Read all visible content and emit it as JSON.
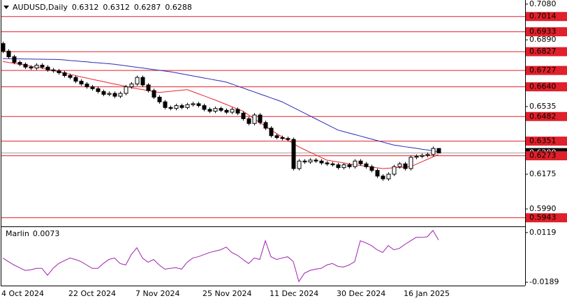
{
  "chart_data": [
    {
      "type": "candlestick",
      "title": "AUDUSD,Daily",
      "categories": [
        "4 Oct 2024",
        null,
        null,
        null,
        null,
        null,
        null,
        null,
        null,
        null,
        null,
        null,
        "22 Oct 2024",
        null,
        null,
        null,
        null,
        null,
        null,
        null,
        null,
        null,
        null,
        null,
        "7 Nov 2024",
        null,
        null,
        null,
        null,
        null,
        null,
        null,
        null,
        null,
        null,
        null,
        "25 Nov 2024",
        null,
        null,
        null,
        null,
        null,
        null,
        null,
        null,
        null,
        null,
        null,
        "11 Dec 2024",
        null,
        null,
        null,
        null,
        null,
        null,
        null,
        null,
        null,
        null,
        null,
        "30 Dec 2024",
        null,
        null,
        null,
        null,
        null,
        null,
        null,
        null,
        null,
        null,
        null,
        "16 Jan 2025",
        null,
        null,
        null,
        null,
        null,
        null
      ],
      "open": [
        0.687,
        0.683,
        0.68,
        0.677,
        0.676,
        0.6745,
        0.674,
        0.6755,
        0.6745,
        0.673,
        0.6725,
        0.6715,
        0.67,
        0.669,
        0.667,
        0.6655,
        0.664,
        0.663,
        0.6615,
        0.66,
        0.6605,
        0.659,
        0.6605,
        0.664,
        0.6655,
        0.669,
        0.665,
        0.662,
        0.6585,
        0.656,
        0.653,
        0.6525,
        0.654,
        0.653,
        0.6545,
        0.655,
        0.654,
        0.652,
        0.651,
        0.6525,
        0.6515,
        0.6505,
        0.652,
        0.65,
        0.647,
        0.6445,
        0.649,
        0.645,
        0.642,
        0.638,
        0.637,
        0.6365,
        0.636,
        0.6205,
        0.6245,
        0.624,
        0.625,
        0.6245,
        0.6235,
        0.623,
        0.6225,
        0.621,
        0.6225,
        0.6215,
        0.6245,
        0.623,
        0.6215,
        0.6195,
        0.6165,
        0.615,
        0.6175,
        0.6215,
        0.623,
        0.6205,
        0.6265,
        0.627,
        0.6275,
        0.628,
        0.6312
      ],
      "high": [
        0.688,
        0.684,
        0.681,
        0.678,
        0.677,
        0.6755,
        0.6765,
        0.6765,
        0.6755,
        0.674,
        0.6735,
        0.6725,
        0.671,
        0.67,
        0.668,
        0.6665,
        0.665,
        0.664,
        0.6625,
        0.6615,
        0.6615,
        0.6615,
        0.665,
        0.6665,
        0.67,
        0.67,
        0.666,
        0.663,
        0.6595,
        0.657,
        0.654,
        0.655,
        0.655,
        0.6555,
        0.656,
        0.656,
        0.655,
        0.653,
        0.6535,
        0.6535,
        0.6525,
        0.653,
        0.653,
        0.651,
        0.648,
        0.65,
        0.65,
        0.646,
        0.643,
        0.639,
        0.638,
        0.6375,
        0.637,
        0.6255,
        0.6255,
        0.626,
        0.626,
        0.6255,
        0.6245,
        0.624,
        0.6235,
        0.6235,
        0.6235,
        0.6255,
        0.6255,
        0.624,
        0.6225,
        0.6205,
        0.6175,
        0.6185,
        0.6225,
        0.624,
        0.624,
        0.6275,
        0.628,
        0.6285,
        0.629,
        0.6322,
        0.6312
      ],
      "low": [
        0.682,
        0.679,
        0.676,
        0.675,
        0.6735,
        0.673,
        0.673,
        0.6735,
        0.672,
        0.6715,
        0.6705,
        0.669,
        0.668,
        0.666,
        0.6645,
        0.663,
        0.662,
        0.6605,
        0.659,
        0.659,
        0.658,
        0.658,
        0.6595,
        0.663,
        0.6645,
        0.664,
        0.661,
        0.6575,
        0.655,
        0.652,
        0.6515,
        0.6515,
        0.652,
        0.652,
        0.6535,
        0.653,
        0.651,
        0.65,
        0.65,
        0.6505,
        0.6495,
        0.6495,
        0.649,
        0.646,
        0.6435,
        0.6435,
        0.644,
        0.641,
        0.637,
        0.636,
        0.6355,
        0.635,
        0.6195,
        0.6195,
        0.623,
        0.623,
        0.6235,
        0.6225,
        0.622,
        0.6215,
        0.62,
        0.62,
        0.6205,
        0.6205,
        0.622,
        0.6205,
        0.6185,
        0.6155,
        0.614,
        0.614,
        0.6165,
        0.6205,
        0.6195,
        0.6195,
        0.6255,
        0.626,
        0.6265,
        0.627,
        0.6287
      ],
      "close": [
        0.683,
        0.68,
        0.677,
        0.676,
        0.6745,
        0.674,
        0.6755,
        0.6745,
        0.673,
        0.6725,
        0.6715,
        0.67,
        0.669,
        0.667,
        0.6655,
        0.664,
        0.663,
        0.6615,
        0.66,
        0.6605,
        0.659,
        0.6605,
        0.664,
        0.6655,
        0.669,
        0.665,
        0.662,
        0.6585,
        0.656,
        0.653,
        0.6525,
        0.654,
        0.653,
        0.6545,
        0.655,
        0.654,
        0.652,
        0.651,
        0.6525,
        0.6515,
        0.6505,
        0.652,
        0.65,
        0.647,
        0.6445,
        0.649,
        0.645,
        0.642,
        0.638,
        0.637,
        0.6365,
        0.636,
        0.6205,
        0.6245,
        0.624,
        0.625,
        0.6245,
        0.6235,
        0.623,
        0.6225,
        0.621,
        0.6225,
        0.6215,
        0.6245,
        0.623,
        0.6215,
        0.6195,
        0.6165,
        0.615,
        0.6175,
        0.6215,
        0.623,
        0.6205,
        0.6265,
        0.627,
        0.6275,
        0.628,
        0.6312,
        0.6288
      ],
      "up_color": "#ffffff",
      "down_color": "#000000",
      "wick_color": "#000000",
      "series": [
        {
          "color": "#e8262a",
          "values": [
            0.6775,
            0.677,
            0.6765,
            0.676,
            0.6755,
            0.675,
            0.6745,
            0.674,
            0.6733,
            0.6727,
            0.672,
            0.6713,
            0.6707,
            0.67,
            0.6693,
            0.6687,
            0.668,
            0.6674,
            0.6668,
            0.6661,
            0.6655,
            0.6649,
            0.6643,
            0.6636,
            0.663,
            0.6625,
            0.662,
            0.6615,
            0.661,
            0.6613,
            0.6616,
            0.6619,
            0.6622,
            0.6625,
            0.6614,
            0.6603,
            0.6592,
            0.6581,
            0.657,
            0.6558,
            0.6546,
            0.6534,
            0.6522,
            0.651,
            0.649,
            0.647,
            0.645,
            0.643,
            0.641,
            0.6392,
            0.6374,
            0.6356,
            0.6338,
            0.632,
            0.6306,
            0.6292,
            0.6278,
            0.6264,
            0.625,
            0.6245,
            0.624,
            0.6235,
            0.623,
            0.6225,
            0.6221,
            0.6217,
            0.6213,
            0.6209,
            0.6205,
            0.6207,
            0.6209,
            0.6211,
            0.6213,
            0.6215,
            0.6228,
            0.6241,
            0.6254,
            0.6267,
            0.628
          ]
        },
        {
          "color": "#2a2ab8",
          "values": [
            0.679,
            0.679,
            0.6789,
            0.6789,
            0.6788,
            0.6788,
            0.6787,
            0.6787,
            0.6786,
            0.6786,
            0.6785,
            0.6783,
            0.678,
            0.6778,
            0.6775,
            0.6773,
            0.677,
            0.6768,
            0.6765,
            0.6763,
            0.676,
            0.6756,
            0.6752,
            0.6748,
            0.6744,
            0.674,
            0.6736,
            0.6732,
            0.6728,
            0.6724,
            0.672,
            0.6715,
            0.6709,
            0.6704,
            0.6698,
            0.6693,
            0.6687,
            0.6682,
            0.6676,
            0.6671,
            0.6665,
            0.6655,
            0.6644,
            0.6634,
            0.6623,
            0.6613,
            0.6602,
            0.6592,
            0.6581,
            0.6571,
            0.656,
            0.6545,
            0.653,
            0.6515,
            0.65,
            0.6485,
            0.647,
            0.6455,
            0.644,
            0.6425,
            0.641,
            0.6402,
            0.6394,
            0.6386,
            0.6378,
            0.637,
            0.6362,
            0.6354,
            0.6346,
            0.6338,
            0.633,
            0.6326,
            0.6321,
            0.6317,
            0.6313,
            0.6308,
            0.6304,
            0.6299,
            0.6295
          ]
        }
      ],
      "levels": [
        0.7014,
        0.6933,
        0.6827,
        0.6727,
        {
          "value": 0.664,
          "label": "0.6640"
        },
        0.6482,
        0.6351,
        0.6273,
        0.5943
      ],
      "level_color": "#e0202a",
      "ylim": [
        0.5901,
        0.7102
      ],
      "yticks": [
        {
          "value": 0.708,
          "label": "0.7080"
        },
        {
          "value": 0.689,
          "label": "0.6890"
        },
        0.6535,
        0.6175,
        {
          "value": 0.599,
          "label": "0.5990"
        }
      ],
      "grid": false
    },
    {
      "type": "line",
      "title": "Marlin",
      "color": "#a020b0",
      "values": [
        -0.0039,
        -0.0061,
        -0.0082,
        -0.0099,
        -0.0116,
        -0.0112,
        -0.0103,
        -0.0103,
        -0.0146,
        -0.0103,
        -0.0073,
        -0.0056,
        -0.0039,
        -0.0048,
        -0.0061,
        -0.0082,
        -0.0103,
        -0.0103,
        -0.0073,
        -0.0048,
        -0.0039,
        -0.0073,
        -0.0082,
        -0.0018,
        0.0025,
        -0.0039,
        -0.0065,
        -0.0048,
        -0.0082,
        -0.0108,
        -0.0103,
        -0.0099,
        -0.0108,
        -0.0065,
        -0.0039,
        -0.0031,
        -0.0018,
        -0.0005,
        0.0004,
        0.0012,
        0.0029,
        -0.0005,
        -0.0022,
        -0.0048,
        -0.0073,
        -0.0039,
        -0.0048,
        0.0068,
        -0.0031,
        -0.0048,
        -0.0039,
        -0.0031,
        -0.0061,
        -0.0185,
        -0.0133,
        -0.0116,
        -0.0108,
        -0.0103,
        -0.0082,
        -0.0073,
        -0.0091,
        -0.0095,
        -0.0082,
        -0.0061,
        0.0068,
        0.0055,
        0.0038,
        0.0012,
        -0.0005,
        0.0038,
        0.0012,
        0.0021,
        0.0046,
        0.0068,
        0.0089,
        0.0089,
        0.0093,
        0.0132,
        0.0073
      ],
      "ylim": [
        -0.021,
        0.0153
      ],
      "yticks": [
        0.0119,
        -0.0189
      ],
      "grid": false
    }
  ]
}
